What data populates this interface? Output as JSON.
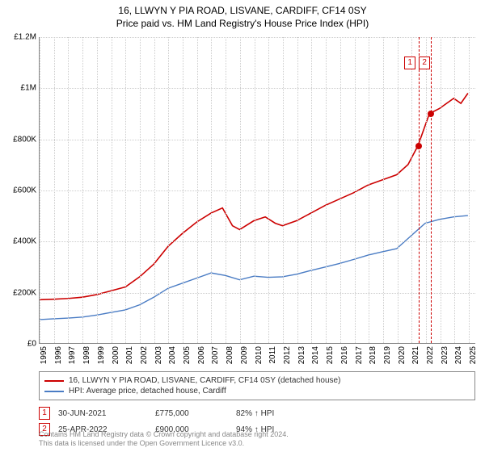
{
  "title": {
    "main": "16, LLWYN Y PIA ROAD, LISVANE, CARDIFF, CF14 0SY",
    "sub": "Price paid vs. HM Land Registry's House Price Index (HPI)"
  },
  "chart": {
    "type": "line",
    "ylim": [
      0,
      1200000
    ],
    "yticks": [
      0,
      200000,
      400000,
      600000,
      800000,
      1000000,
      1200000
    ],
    "ytick_labels": [
      "£0",
      "£200K",
      "£400K",
      "£600K",
      "£800K",
      "£1M",
      "£1.2M"
    ],
    "xstart": 1995,
    "xend": 2025.5,
    "xticks": [
      1995,
      1996,
      1997,
      1998,
      1999,
      2000,
      2001,
      2002,
      2003,
      2004,
      2005,
      2006,
      2007,
      2008,
      2009,
      2010,
      2011,
      2012,
      2013,
      2014,
      2015,
      2016,
      2017,
      2018,
      2019,
      2020,
      2021,
      2022,
      2023,
      2024,
      2025
    ],
    "grid_color": "#cccccc",
    "background_color": "#ffffff",
    "series": [
      {
        "name": "property",
        "color": "#cc0000",
        "width": 1.6,
        "label": "16, LLWYN Y PIA ROAD, LISVANE, CARDIFF, CF14 0SY (detached house)",
        "points": [
          [
            1995,
            170000
          ],
          [
            1996,
            172000
          ],
          [
            1997,
            175000
          ],
          [
            1998,
            180000
          ],
          [
            1999,
            190000
          ],
          [
            2000,
            205000
          ],
          [
            2001,
            220000
          ],
          [
            2002,
            260000
          ],
          [
            2003,
            310000
          ],
          [
            2004,
            380000
          ],
          [
            2005,
            430000
          ],
          [
            2006,
            475000
          ],
          [
            2007,
            510000
          ],
          [
            2007.8,
            530000
          ],
          [
            2008.5,
            460000
          ],
          [
            2009,
            445000
          ],
          [
            2010,
            480000
          ],
          [
            2010.8,
            495000
          ],
          [
            2011.5,
            470000
          ],
          [
            2012,
            460000
          ],
          [
            2013,
            480000
          ],
          [
            2014,
            510000
          ],
          [
            2015,
            540000
          ],
          [
            2016,
            565000
          ],
          [
            2017,
            590000
          ],
          [
            2018,
            620000
          ],
          [
            2019,
            640000
          ],
          [
            2020,
            660000
          ],
          [
            2020.8,
            700000
          ],
          [
            2021.5,
            775000
          ],
          [
            2022.3,
            900000
          ],
          [
            2023,
            920000
          ],
          [
            2024,
            960000
          ],
          [
            2024.5,
            940000
          ],
          [
            2025,
            980000
          ]
        ]
      },
      {
        "name": "hpi",
        "color": "#4a7cc4",
        "width": 1.4,
        "label": "HPI: Average price, detached house, Cardiff",
        "points": [
          [
            1995,
            92000
          ],
          [
            1996,
            95000
          ],
          [
            1997,
            98000
          ],
          [
            1998,
            102000
          ],
          [
            1999,
            110000
          ],
          [
            2000,
            120000
          ],
          [
            2001,
            130000
          ],
          [
            2002,
            150000
          ],
          [
            2003,
            180000
          ],
          [
            2004,
            215000
          ],
          [
            2005,
            235000
          ],
          [
            2006,
            255000
          ],
          [
            2007,
            275000
          ],
          [
            2008,
            265000
          ],
          [
            2009,
            248000
          ],
          [
            2010,
            262000
          ],
          [
            2011,
            258000
          ],
          [
            2012,
            260000
          ],
          [
            2013,
            270000
          ],
          [
            2014,
            285000
          ],
          [
            2015,
            298000
          ],
          [
            2016,
            312000
          ],
          [
            2017,
            328000
          ],
          [
            2018,
            345000
          ],
          [
            2019,
            358000
          ],
          [
            2020,
            370000
          ],
          [
            2021,
            420000
          ],
          [
            2022,
            470000
          ],
          [
            2023,
            485000
          ],
          [
            2024,
            495000
          ],
          [
            2025,
            500000
          ]
        ]
      }
    ],
    "sales": [
      {
        "num": "1",
        "year": 2021.5,
        "price": 775000,
        "date": "30-JUN-2021",
        "price_label": "£775,000",
        "pct": "82% ↑ HPI"
      },
      {
        "num": "2",
        "year": 2022.31,
        "price": 900000,
        "date": "25-APR-2022",
        "price_label": "£900,000",
        "pct": "94% ↑ HPI"
      }
    ]
  },
  "footer": {
    "line1": "Contains HM Land Registry data © Crown copyright and database right 2024.",
    "line2": "This data is licensed under the Open Government Licence v3.0."
  }
}
